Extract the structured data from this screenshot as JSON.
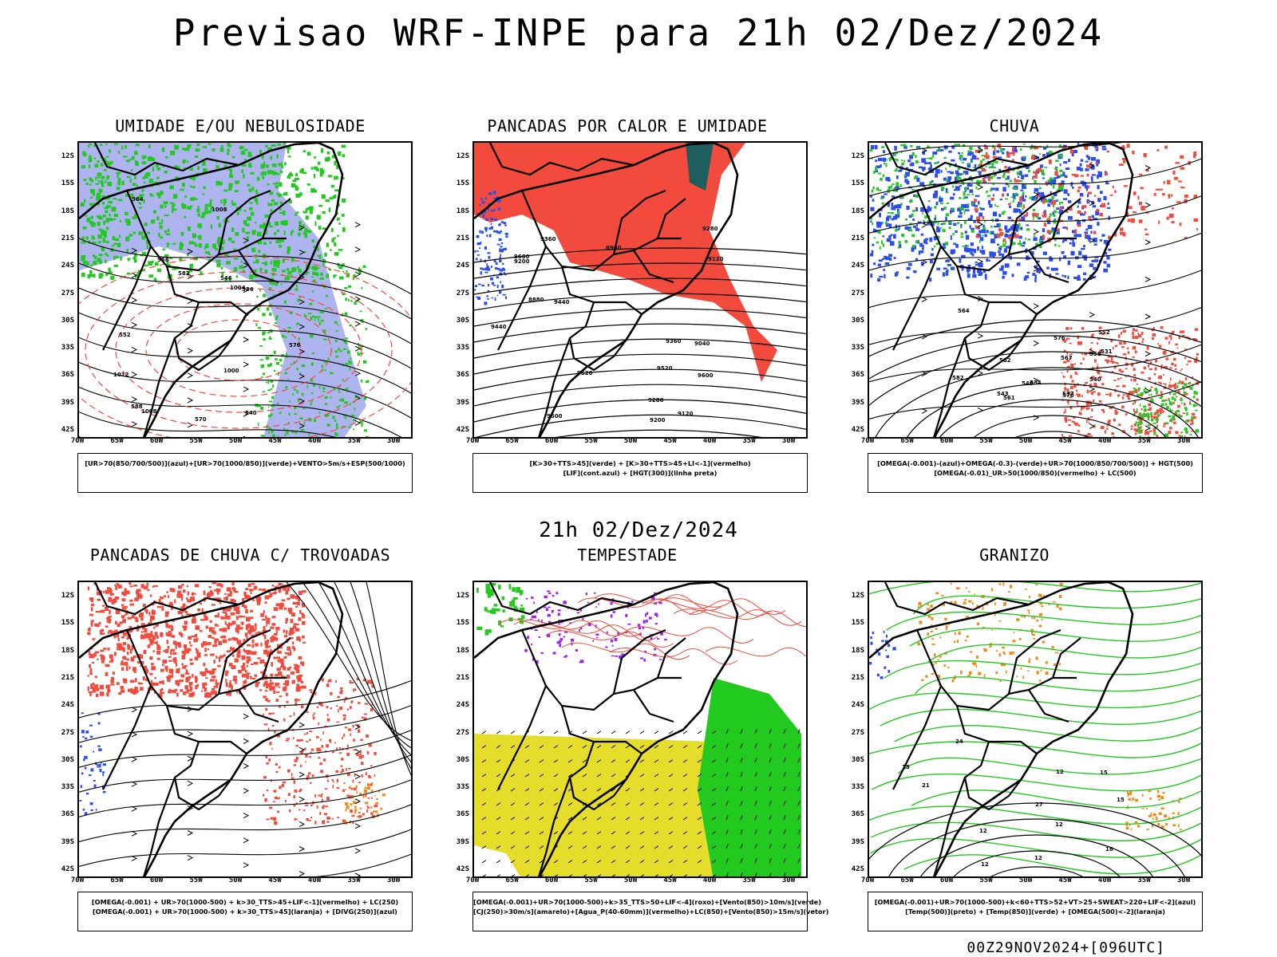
{
  "title": "Previsao WRF-INPE  para 21h 02/Dez/2024",
  "mid_date": "21h 02/Dez/2024",
  "footer": "00Z29NOV2024+[096UTC]",
  "lat_labels": [
    "12S",
    "15S",
    "18S",
    "21S",
    "24S",
    "27S",
    "30S",
    "33S",
    "36S",
    "39S",
    "42S"
  ],
  "lon_labels": [
    "70W",
    "65W",
    "60W",
    "55W",
    "50W",
    "45W",
    "40W",
    "35W",
    "30W"
  ],
  "colors": {
    "red": "#f24a3c",
    "blue": "#2b4cf0",
    "green": "#22c91f",
    "lavender": "#aeb4ee",
    "teal": "#1f5e5e",
    "yellow": "#e6dc2a",
    "orange": "#f08a1c",
    "purple": "#a020f0"
  },
  "panels": [
    {
      "title": "UMIDADE E/OU NEBULOSIDADE",
      "legend": [
        "[UR>70(850/700/500)](azul)+[UR>70(1000/850)](verde)+VENTO>5m/s+ESP(500/1000)"
      ],
      "contours": [
        "1008",
        "1004",
        "1012",
        "1000",
        "570",
        "576",
        "582",
        "588",
        "564",
        "558",
        "552",
        "546",
        "540",
        "534",
        "1008"
      ]
    },
    {
      "title": "PANCADAS POR CALOR E UMIDADE",
      "legend": [
        "[K>30+TTS>45](verde) + [K>30+TTS>45+LI<-1](vermelho)",
        "[LIF](cont.azul) + [HGT(300)](linha preta)"
      ],
      "contours": [
        "9600",
        "9600",
        "9600",
        "9520",
        "9520",
        "9440",
        "9440",
        "9360",
        "9360",
        "9280",
        "9280",
        "9200",
        "9200",
        "9120",
        "9120",
        "9040",
        "8960",
        "8880"
      ]
    },
    {
      "title": "CHUVA",
      "legend": [
        "[OMEGA(-0.001)-(azul)+OMEGA(-0.3)-(verde)+UR>70(1000/850/700/500)] + HGT(500)",
        "[OMEGA(-0.01)_UR>50(1000/850)(vermelho) + LC(500)"
      ],
      "contours": [
        "582",
        "576",
        "570",
        "564",
        "558",
        "552",
        "546",
        "543",
        "540",
        "537",
        "534",
        "531",
        "582",
        "567",
        "561"
      ]
    },
    {
      "title": "PANCADAS DE CHUVA C/ TROVOADAS",
      "legend": [
        "[OMEGA(-0.001) + UR>70(1000-500) + k>30_TTS>45+LIF<-1](vermelho) + LC(250)",
        "[OMEGA(-0.001) + UR>70(1000-500) + k>30_TTS>45](laranja) + [DIVG(250)](azul)"
      ],
      "contours": []
    },
    {
      "title": "TEMPESTADE",
      "legend": [
        "[OMEGA(-0.001)+UR>70(1000-500)+k>35_TTS>50+LIF<-4](roxo)+[Vento(850)>10m/s](verde)",
        "[CJ(250)>30m/s](amarelo)+[Agua_P(40-60mm)](vermelho)+LC(850)+[Vento(850)>15m/s](vetor)"
      ],
      "contours": []
    },
    {
      "title": "GRANIZO",
      "legend": [
        "[OMEGA(-0.001)+UR>70(1000-500)+k<60+TTS>52+VT>25+SWEAT>220+LIF<-2](azul)",
        "[Temp(500)](preto) + [Temp(850)](verde) + [OMEGA(500)<-2](laranja)"
      ],
      "contours": [
        "12",
        "12",
        "12",
        "15",
        "18",
        "21",
        "24",
        "27",
        "12",
        "18",
        "15",
        "12"
      ]
    }
  ]
}
